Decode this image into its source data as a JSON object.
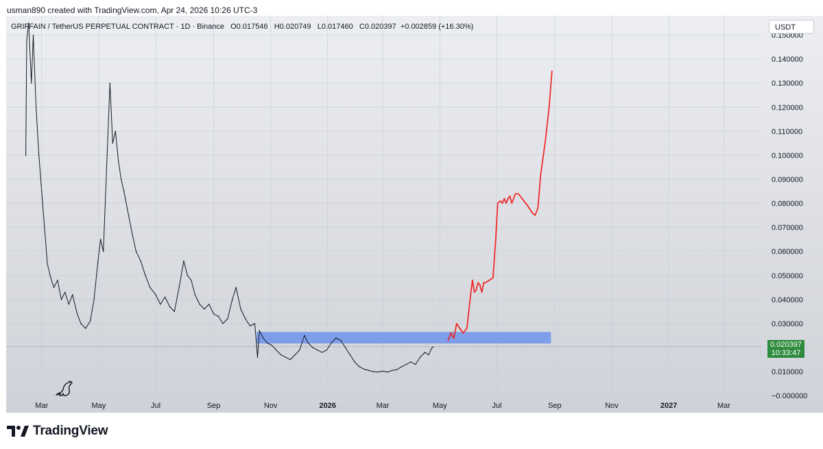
{
  "credit": "usman890 created with TradingView.com, Apr 24, 2026 10:26 UTC-3",
  "legend": {
    "symbol": "GRIFFAIN / TetherUS PERPETUAL CONTRACT · 1D · Binance",
    "open": "O0.017546",
    "high": "H0.020749",
    "low": "L0.017460",
    "close": "C0.020397",
    "change": "+0.002859 (+16.30%)"
  },
  "currency": "USDT",
  "price_tag": {
    "price": "0.020397",
    "countdown": "10:33:47"
  },
  "footer": {
    "brand": "TradingView"
  },
  "icons": {
    "watermark": "dino-icon",
    "brand": "tradingview-logo-icon"
  },
  "colors": {
    "candles": "#131722",
    "projection": "#ef2b2b",
    "zone": "#6f94ec",
    "price_tag": "#2e8b3d",
    "last_price_line": "#7b8089"
  },
  "chart_data": {
    "type": "line",
    "title": "",
    "xlabel": "",
    "ylabel": "",
    "y_tick_labels": [
      "0.150000",
      "0.140000",
      "0.130000",
      "0.120000",
      "0.110000",
      "0.100000",
      "0.090000",
      "0.080000",
      "0.070000",
      "0.060000",
      "0.050000",
      "0.040000",
      "0.030000",
      "0.020000",
      "0.010000",
      "−0.000000"
    ],
    "x_tick_labels": [
      {
        "label": "Mar",
        "bold": false
      },
      {
        "label": "May",
        "bold": false
      },
      {
        "label": "Jul",
        "bold": false
      },
      {
        "label": "Sep",
        "bold": false
      },
      {
        "label": "Nov",
        "bold": false
      },
      {
        "label": "2026",
        "bold": true
      },
      {
        "label": "Mar",
        "bold": false
      },
      {
        "label": "May",
        "bold": false
      },
      {
        "label": "Jul",
        "bold": false
      },
      {
        "label": "Sep",
        "bold": false
      },
      {
        "label": "Nov",
        "bold": false
      },
      {
        "label": "2027",
        "bold": true
      },
      {
        "label": "Mar",
        "bold": false
      }
    ],
    "x_range": [
      "2025-01-22",
      "2027-04-10"
    ],
    "ylim": [
      -0.0008,
      0.158
    ],
    "grid": true,
    "last_price": 0.020397,
    "zone": {
      "x_start": "2025-10-17",
      "x_end": "2026-08-28",
      "y_low": 0.0217,
      "y_high": 0.0265
    },
    "series": [
      {
        "kind": "price",
        "points": [
          [
            "2025-02-12",
            0.1
          ],
          [
            "2025-02-13",
            0.148
          ],
          [
            "2025-02-15",
            0.155
          ],
          [
            "2025-02-18",
            0.13
          ],
          [
            "2025-02-20",
            0.15
          ],
          [
            "2025-02-23",
            0.12
          ],
          [
            "2025-02-26",
            0.1
          ],
          [
            "2025-03-01",
            0.085
          ],
          [
            "2025-03-04",
            0.07
          ],
          [
            "2025-03-07",
            0.055
          ],
          [
            "2025-03-10",
            0.05
          ],
          [
            "2025-03-14",
            0.045
          ],
          [
            "2025-03-18",
            0.048
          ],
          [
            "2025-03-22",
            0.04
          ],
          [
            "2025-03-26",
            0.043
          ],
          [
            "2025-03-30",
            0.038
          ],
          [
            "2025-04-03",
            0.042
          ],
          [
            "2025-04-08",
            0.034
          ],
          [
            "2025-04-12",
            0.03
          ],
          [
            "2025-04-17",
            0.028
          ],
          [
            "2025-04-22",
            0.031
          ],
          [
            "2025-04-26",
            0.04
          ],
          [
            "2025-04-30",
            0.055
          ],
          [
            "2025-05-03",
            0.065
          ],
          [
            "2025-05-06",
            0.06
          ],
          [
            "2025-05-10",
            0.1
          ],
          [
            "2025-05-13",
            0.13
          ],
          [
            "2025-05-16",
            0.105
          ],
          [
            "2025-05-19",
            0.11
          ],
          [
            "2025-05-22",
            0.098
          ],
          [
            "2025-05-25",
            0.09
          ],
          [
            "2025-05-28",
            0.085
          ],
          [
            "2025-06-02",
            0.075
          ],
          [
            "2025-06-06",
            0.067
          ],
          [
            "2025-06-10",
            0.06
          ],
          [
            "2025-06-15",
            0.056
          ],
          [
            "2025-06-20",
            0.05
          ],
          [
            "2025-06-25",
            0.045
          ],
          [
            "2025-07-01",
            0.042
          ],
          [
            "2025-07-06",
            0.038
          ],
          [
            "2025-07-11",
            0.041
          ],
          [
            "2025-07-16",
            0.037
          ],
          [
            "2025-07-21",
            0.035
          ],
          [
            "2025-07-26",
            0.045
          ],
          [
            "2025-07-31",
            0.056
          ],
          [
            "2025-08-04",
            0.05
          ],
          [
            "2025-08-08",
            0.048
          ],
          [
            "2025-08-12",
            0.042
          ],
          [
            "2025-08-17",
            0.038
          ],
          [
            "2025-08-22",
            0.036
          ],
          [
            "2025-08-27",
            0.038
          ],
          [
            "2025-09-01",
            0.034
          ],
          [
            "2025-09-06",
            0.033
          ],
          [
            "2025-09-11",
            0.03
          ],
          [
            "2025-09-16",
            0.032
          ],
          [
            "2025-09-21",
            0.04
          ],
          [
            "2025-09-25",
            0.045
          ],
          [
            "2025-09-30",
            0.036
          ],
          [
            "2025-10-05",
            0.032
          ],
          [
            "2025-10-10",
            0.029
          ],
          [
            "2025-10-15",
            0.03
          ],
          [
            "2025-10-18",
            0.016
          ],
          [
            "2025-10-20",
            0.027
          ],
          [
            "2025-10-24",
            0.024
          ],
          [
            "2025-10-28",
            0.022
          ],
          [
            "2025-11-02",
            0.021
          ],
          [
            "2025-11-07",
            0.019
          ],
          [
            "2025-11-12",
            0.017
          ],
          [
            "2025-11-17",
            0.016
          ],
          [
            "2025-11-22",
            0.015
          ],
          [
            "2025-11-27",
            0.017
          ],
          [
            "2025-12-02",
            0.019
          ],
          [
            "2025-12-07",
            0.025
          ],
          [
            "2025-12-11",
            0.022
          ],
          [
            "2025-12-16",
            0.02
          ],
          [
            "2025-12-21",
            0.019
          ],
          [
            "2025-12-26",
            0.018
          ],
          [
            "2025-12-31",
            0.019
          ],
          [
            "2026-01-05",
            0.022
          ],
          [
            "2026-01-10",
            0.024
          ],
          [
            "2026-01-15",
            0.023
          ],
          [
            "2026-01-20",
            0.02
          ],
          [
            "2026-01-25",
            0.017
          ],
          [
            "2026-01-30",
            0.014
          ],
          [
            "2026-02-04",
            0.012
          ],
          [
            "2026-02-09",
            0.011
          ],
          [
            "2026-02-14",
            0.0105
          ],
          [
            "2026-02-19",
            0.01
          ],
          [
            "2026-02-24",
            0.0098
          ],
          [
            "2026-03-01",
            0.0102
          ],
          [
            "2026-03-06",
            0.0098
          ],
          [
            "2026-03-11",
            0.0105
          ],
          [
            "2026-03-16",
            0.0108
          ],
          [
            "2026-03-21",
            0.012
          ],
          [
            "2026-03-26",
            0.013
          ],
          [
            "2026-03-31",
            0.014
          ],
          [
            "2026-04-05",
            0.013
          ],
          [
            "2026-04-10",
            0.016
          ],
          [
            "2026-04-15",
            0.018
          ],
          [
            "2026-04-19",
            0.017
          ],
          [
            "2026-04-22",
            0.0195
          ],
          [
            "2026-04-24",
            0.020397
          ]
        ]
      },
      {
        "kind": "projection",
        "points": [
          [
            "2026-05-10",
            0.023
          ],
          [
            "2026-05-13",
            0.0262
          ],
          [
            "2026-05-16",
            0.0238
          ],
          [
            "2026-05-19",
            0.03
          ],
          [
            "2026-05-22",
            0.0282
          ],
          [
            "2026-05-26",
            0.026
          ],
          [
            "2026-05-30",
            0.028
          ],
          [
            "2026-06-03",
            0.042
          ],
          [
            "2026-06-05",
            0.048
          ],
          [
            "2026-06-07",
            0.043
          ],
          [
            "2026-06-09",
            0.044
          ],
          [
            "2026-06-11",
            0.047
          ],
          [
            "2026-06-13",
            0.046
          ],
          [
            "2026-06-15",
            0.043
          ],
          [
            "2026-06-17",
            0.047
          ],
          [
            "2026-06-19",
            0.047
          ],
          [
            "2026-06-23",
            0.048
          ],
          [
            "2026-06-27",
            0.049
          ],
          [
            "2026-06-30",
            0.066
          ],
          [
            "2026-07-02",
            0.08
          ],
          [
            "2026-07-05",
            0.081
          ],
          [
            "2026-07-07",
            0.08
          ],
          [
            "2026-07-09",
            0.082
          ],
          [
            "2026-07-11",
            0.08
          ],
          [
            "2026-07-13",
            0.082
          ],
          [
            "2026-07-15",
            0.083
          ],
          [
            "2026-07-17",
            0.08
          ],
          [
            "2026-07-19",
            0.082
          ],
          [
            "2026-07-21",
            0.084
          ],
          [
            "2026-07-24",
            0.084
          ],
          [
            "2026-07-28",
            0.082
          ],
          [
            "2026-08-03",
            0.079
          ],
          [
            "2026-08-08",
            0.076
          ],
          [
            "2026-08-11",
            0.075
          ],
          [
            "2026-08-14",
            0.078
          ],
          [
            "2026-08-17",
            0.092
          ],
          [
            "2026-08-22",
            0.106
          ],
          [
            "2026-08-26",
            0.12
          ],
          [
            "2026-08-29",
            0.135
          ]
        ]
      }
    ]
  }
}
